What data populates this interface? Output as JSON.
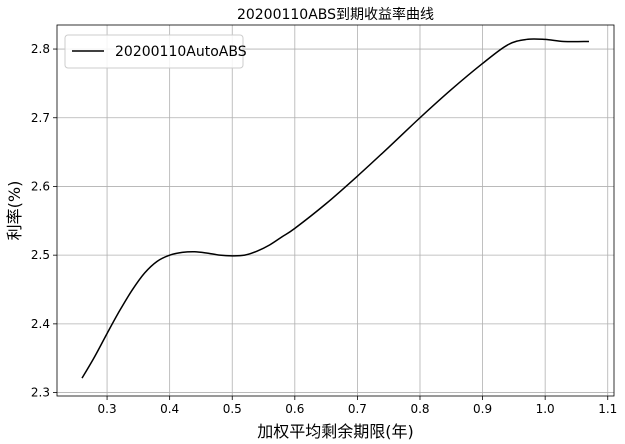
{
  "chart_data": {
    "type": "line",
    "title": "20200110ABS到期收益率曲线",
    "xlabel": "加权平均剩余期限(年)",
    "ylabel": "利率(%)",
    "xlim": [
      0.22,
      1.11
    ],
    "ylim": [
      2.295,
      2.835
    ],
    "xticks": [
      0.3,
      0.4,
      0.5,
      0.6,
      0.7,
      0.8,
      0.9,
      1.0,
      1.1
    ],
    "xtick_labels": [
      "0.3",
      "0.4",
      "0.5",
      "0.6",
      "0.7",
      "0.8",
      "0.9",
      "1.0",
      "1.1"
    ],
    "yticks": [
      2.3,
      2.4,
      2.5,
      2.6,
      2.7,
      2.8
    ],
    "ytick_labels": [
      "2.3",
      "2.4",
      "2.5",
      "2.6",
      "2.7",
      "2.8"
    ],
    "grid": true,
    "legend": {
      "position": "top-left"
    },
    "series": [
      {
        "name": "20200110AutoABS",
        "color": "#000000",
        "x": [
          0.26,
          0.28,
          0.3,
          0.32,
          0.34,
          0.36,
          0.38,
          0.4,
          0.42,
          0.44,
          0.46,
          0.48,
          0.5,
          0.52,
          0.54,
          0.56,
          0.58,
          0.6,
          0.65,
          0.7,
          0.75,
          0.8,
          0.85,
          0.9,
          0.94,
          0.97,
          1.0,
          1.03,
          1.07
        ],
        "y": [
          2.321,
          2.352,
          2.386,
          2.419,
          2.449,
          2.474,
          2.491,
          2.5,
          2.504,
          2.505,
          2.503,
          2.5,
          2.499,
          2.5,
          2.506,
          2.515,
          2.527,
          2.539,
          2.575,
          2.615,
          2.657,
          2.7,
          2.741,
          2.779,
          2.806,
          2.814,
          2.814,
          2.811,
          2.811
        ]
      }
    ]
  }
}
